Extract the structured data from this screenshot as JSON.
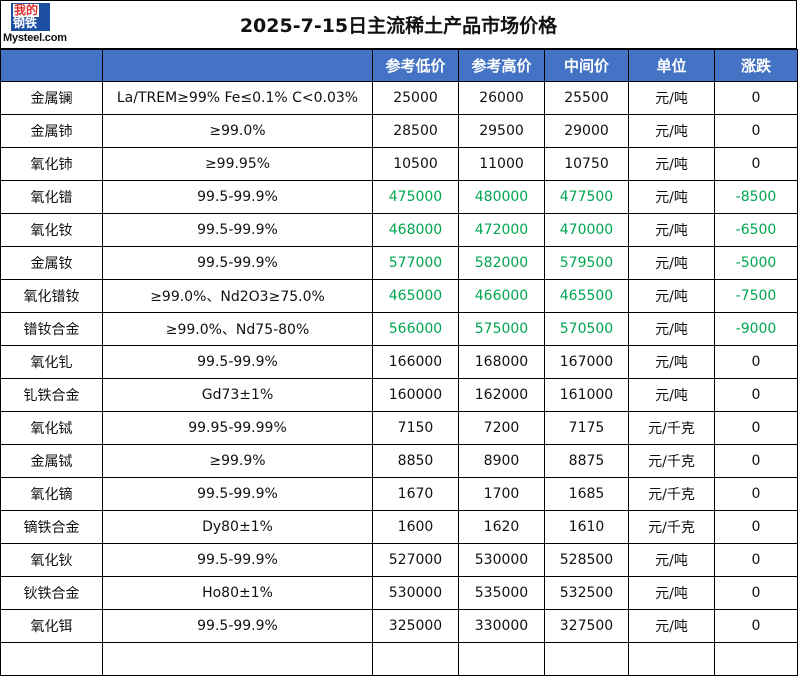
{
  "title": "2025-7-15日主流稀土产品市场价格",
  "logo": {
    "line1": "我的",
    "line2": "钢铁",
    "text": "Mysteel.com"
  },
  "colors": {
    "header_bg": "#4472c4",
    "negative_change": "#00a650"
  },
  "headers": [
    "",
    "",
    "参考低价",
    "参考高价",
    "中间价",
    "单位",
    "涨跌"
  ],
  "rows": [
    {
      "name": "金属镧",
      "spec": "La/TREM≥99% Fe≤0.1% C<0.03%",
      "low": "25000",
      "high": "26000",
      "mid": "25500",
      "unit": "元/吨",
      "change": "0",
      "down": false
    },
    {
      "name": "金属铈",
      "spec": "≥99.0%",
      "low": "28500",
      "high": "29500",
      "mid": "29000",
      "unit": "元/吨",
      "change": "0",
      "down": false
    },
    {
      "name": "氧化铈",
      "spec": "≥99.95%",
      "low": "10500",
      "high": "11000",
      "mid": "10750",
      "unit": "元/吨",
      "change": "0",
      "down": false
    },
    {
      "name": "氧化镨",
      "spec": "99.5-99.9%",
      "low": "475000",
      "high": "480000",
      "mid": "477500",
      "unit": "元/吨",
      "change": "-8500",
      "down": true
    },
    {
      "name": "氧化钕",
      "spec": "99.5-99.9%",
      "low": "468000",
      "high": "472000",
      "mid": "470000",
      "unit": "元/吨",
      "change": "-6500",
      "down": true
    },
    {
      "name": "金属钕",
      "spec": "99.5-99.9%",
      "low": "577000",
      "high": "582000",
      "mid": "579500",
      "unit": "元/吨",
      "change": "-5000",
      "down": true
    },
    {
      "name": "氧化镨钕",
      "spec": "≥99.0%、Nd2O3≥75.0%",
      "low": "465000",
      "high": "466000",
      "mid": "465500",
      "unit": "元/吨",
      "change": "-7500",
      "down": true
    },
    {
      "name": "镨钕合金",
      "spec": "≥99.0%、Nd75-80%",
      "low": "566000",
      "high": "575000",
      "mid": "570500",
      "unit": "元/吨",
      "change": "-9000",
      "down": true
    },
    {
      "name": "氧化钆",
      "spec": "99.5-99.9%",
      "low": "166000",
      "high": "168000",
      "mid": "167000",
      "unit": "元/吨",
      "change": "0",
      "down": false
    },
    {
      "name": "钆铁合金",
      "spec": "Gd73±1%",
      "low": "160000",
      "high": "162000",
      "mid": "161000",
      "unit": "元/吨",
      "change": "0",
      "down": false
    },
    {
      "name": "氧化铽",
      "spec": "99.95-99.99%",
      "low": "7150",
      "high": "7200",
      "mid": "7175",
      "unit": "元/千克",
      "change": "0",
      "down": false
    },
    {
      "name": "金属铽",
      "spec": "≥99.9%",
      "low": "8850",
      "high": "8900",
      "mid": "8875",
      "unit": "元/千克",
      "change": "0",
      "down": false
    },
    {
      "name": "氧化镝",
      "spec": "99.5-99.9%",
      "low": "1670",
      "high": "1700",
      "mid": "1685",
      "unit": "元/千克",
      "change": "0",
      "down": false
    },
    {
      "name": "镝铁合金",
      "spec": "Dy80±1%",
      "low": "1600",
      "high": "1620",
      "mid": "1610",
      "unit": "元/千克",
      "change": "0",
      "down": false
    },
    {
      "name": "氧化钬",
      "spec": "99.5-99.9%",
      "low": "527000",
      "high": "530000",
      "mid": "528500",
      "unit": "元/吨",
      "change": "0",
      "down": false
    },
    {
      "name": "钬铁合金",
      "spec": "Ho80±1%",
      "low": "530000",
      "high": "535000",
      "mid": "532500",
      "unit": "元/吨",
      "change": "0",
      "down": false
    },
    {
      "name": "氧化铒",
      "spec": "99.5-99.9%",
      "low": "325000",
      "high": "330000",
      "mid": "327500",
      "unit": "元/吨",
      "change": "0",
      "down": false
    },
    {
      "name": "",
      "spec": "",
      "low": "",
      "high": "",
      "mid": "",
      "unit": "",
      "change": "",
      "down": false
    }
  ]
}
